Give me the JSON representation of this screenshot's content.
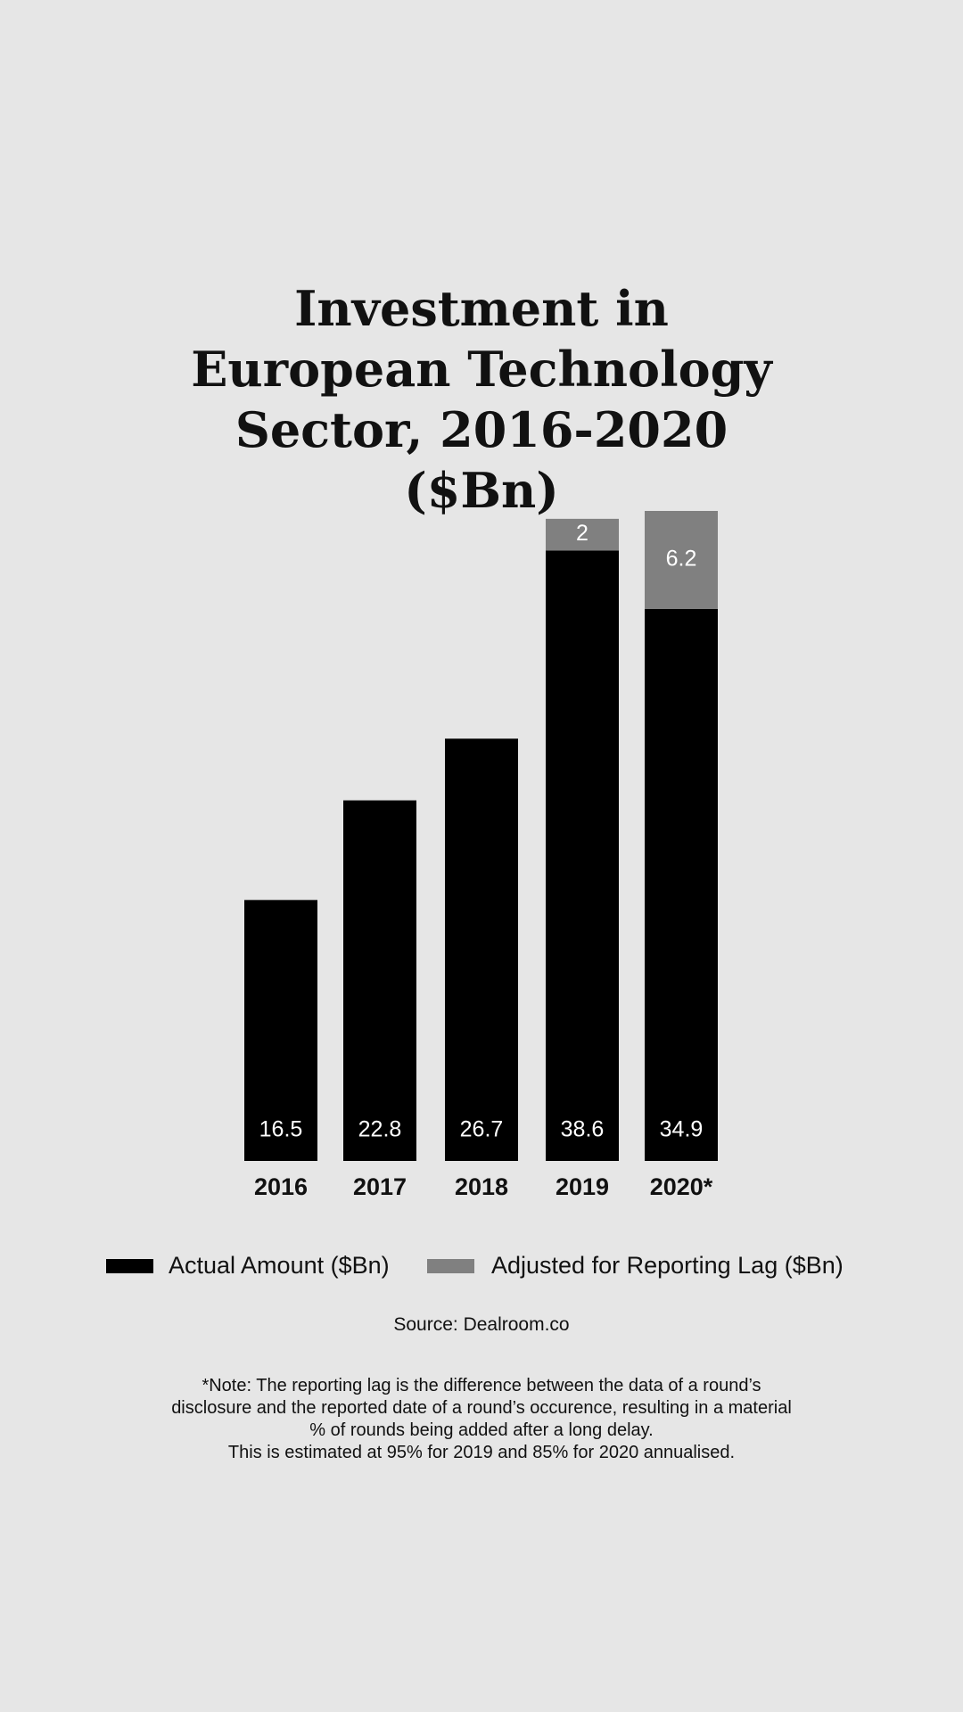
{
  "chart_data": {
    "type": "stacked_bar",
    "title": "Investment in European Technology Sector, 2016-2020 ($Bn)",
    "categories": [
      "2016",
      "2017",
      "2018",
      "2019",
      "2020*"
    ],
    "series": [
      {
        "name": "Actual Amount ($Bn)",
        "color": "#000000",
        "values": [
          16.5,
          22.8,
          26.7,
          38.6,
          34.9
        ]
      },
      {
        "name": "Adjusted for Reporting Lag ($Bn)",
        "color": "#808080",
        "values": [
          null,
          null,
          null,
          2.0,
          6.2
        ]
      }
    ],
    "source": "Source: Dealroom.co",
    "note": [
      "*Note: The reporting lag is the difference between the data of a round’s disclosure and the reported date of a round’s occurence, resulting in a material % of rounds being added after a long delay.",
      "This is estimated at 95% for 2019 and 85% for 2020 annualised."
    ]
  }
}
